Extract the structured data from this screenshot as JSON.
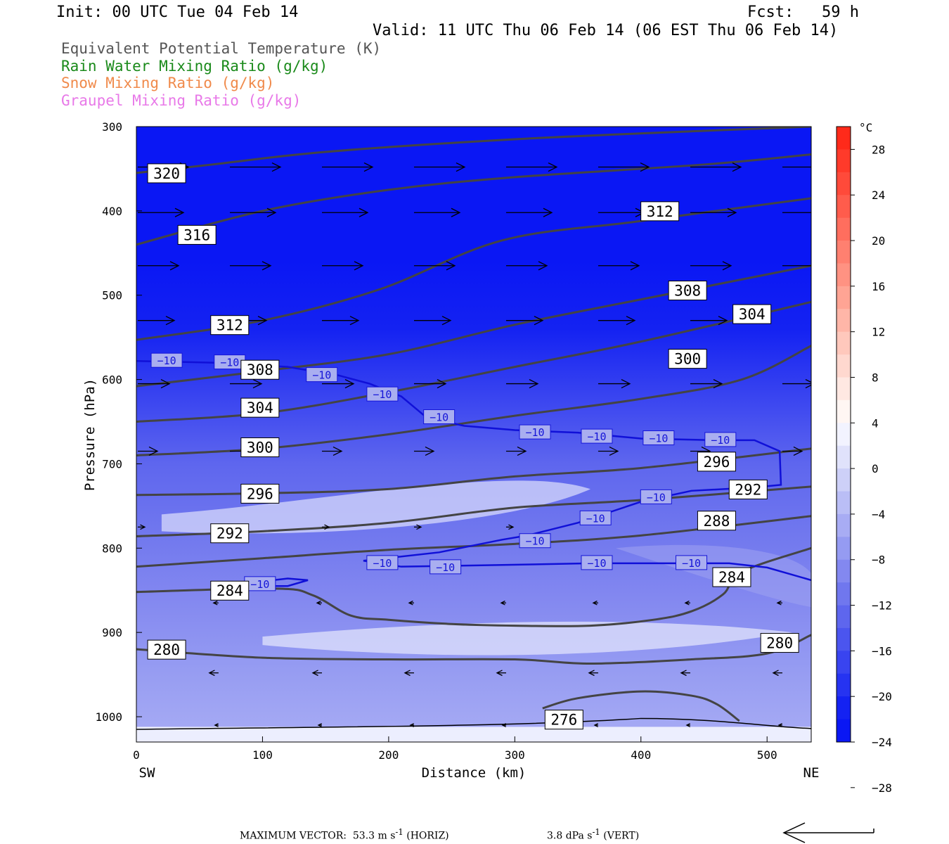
{
  "header": {
    "init": "Init: 00 UTC Tue 04 Feb 14",
    "fcst": "Fcst:   59 h",
    "valid": "Valid: 11 UTC Thu 06 Feb 14 (06 EST Thu 06 Feb 14)"
  },
  "legend": [
    {
      "label": "Equivalent Potential Temperature (K)",
      "color": "#555555"
    },
    {
      "label": "Rain Water Mixing Ratio (g/kg)",
      "color": "#1a8a1a"
    },
    {
      "label": "Snow Mixing Ratio (g/kg)",
      "color": "#f08a4b"
    },
    {
      "label": "Graupel Mixing Ratio (g/kg)",
      "color": "#e879e8"
    }
  ],
  "chart_data": {
    "type": "heatmap",
    "xlabel": "Distance (km)",
    "ylabel": "Pressure (hPa)",
    "xlim": [
      0,
      535
    ],
    "ylim": [
      1030,
      300
    ],
    "x_ticks": [
      0,
      100,
      200,
      300,
      400,
      500
    ],
    "y_ticks": [
      300,
      400,
      500,
      600,
      700,
      800,
      900,
      1000
    ],
    "x_end_labels": {
      "left": "SW",
      "right": "NE"
    },
    "colorbar": {
      "unit": "°C",
      "labels": [
        28,
        24,
        20,
        16,
        12,
        8,
        4,
        0,
        -4,
        -8,
        -12,
        -16,
        -20,
        -24,
        -28
      ],
      "bands": [
        "#ff2a1a",
        "#ff3a2a",
        "#ff4a3a",
        "#ff5c4c",
        "#ff6e5e",
        "#ff8070",
        "#ff9282",
        "#ffa494",
        "#ffb6a8",
        "#ffc8bc",
        "#ffd8cf",
        "#ffe8e2",
        "#fff6f3",
        "#f2f3ff",
        "#e0e2fb",
        "#cdd0f8",
        "#babef6",
        "#a8acf4",
        "#959bf2",
        "#8388f0",
        "#7077ee",
        "#5e66ee",
        "#4b55ef",
        "#3944f0",
        "#2633f1",
        "#1422f2",
        "#0a17f4"
      ]
    },
    "temperature_field": {
      "levels_p": [
        300,
        380,
        460,
        540,
        620,
        700,
        780,
        860,
        940,
        1030
      ],
      "values_C": [
        -32,
        -29,
        -25,
        -20,
        -15,
        -11,
        -9,
        -7,
        -6,
        -4
      ]
    },
    "theta_e_contours": [
      {
        "value": 320,
        "points": [
          [
            0,
            355
          ],
          [
            60,
            345
          ],
          [
            150,
            330
          ],
          [
            300,
            315
          ],
          [
            450,
            305
          ],
          [
            535,
            300
          ]
        ]
      },
      {
        "value": 316,
        "points": [
          [
            0,
            440
          ],
          [
            100,
            400
          ],
          [
            200,
            375
          ],
          [
            300,
            360
          ],
          [
            450,
            345
          ],
          [
            535,
            333
          ]
        ]
      },
      {
        "value": 312,
        "points": [
          [
            0,
            553
          ],
          [
            100,
            530
          ],
          [
            193,
            493
          ],
          [
            290,
            435
          ],
          [
            400,
            412
          ],
          [
            535,
            385
          ]
        ]
      },
      {
        "value": 308,
        "points": [
          [
            0,
            608
          ],
          [
            100,
            590
          ],
          [
            200,
            570
          ],
          [
            300,
            535
          ],
          [
            400,
            505
          ],
          [
            535,
            465
          ]
        ]
      },
      {
        "value": 304,
        "points": [
          [
            0,
            650
          ],
          [
            100,
            640
          ],
          [
            200,
            615
          ],
          [
            300,
            585
          ],
          [
            400,
            555
          ],
          [
            535,
            508
          ]
        ]
      },
      {
        "value": 300,
        "points": [
          [
            0,
            690
          ],
          [
            100,
            682
          ],
          [
            200,
            665
          ],
          [
            300,
            643
          ],
          [
            400,
            623
          ],
          [
            480,
            600
          ],
          [
            535,
            560
          ]
        ]
      },
      {
        "value": 296,
        "points": [
          [
            0,
            737
          ],
          [
            100,
            735
          ],
          [
            200,
            730
          ],
          [
            300,
            715
          ],
          [
            400,
            705
          ],
          [
            535,
            682
          ]
        ]
      },
      {
        "value": 292,
        "points": [
          [
            0,
            786
          ],
          [
            100,
            780
          ],
          [
            200,
            770
          ],
          [
            300,
            752
          ],
          [
            400,
            743
          ],
          [
            535,
            727
          ]
        ]
      },
      {
        "value": 288,
        "points": [
          [
            0,
            822
          ],
          [
            100,
            812
          ],
          [
            200,
            802
          ],
          [
            300,
            795
          ],
          [
            400,
            785
          ],
          [
            535,
            762
          ]
        ]
      },
      {
        "value": 284,
        "points": [
          [
            0,
            852
          ],
          [
            110,
            848
          ],
          [
            140,
            856
          ],
          [
            170,
            880
          ],
          [
            200,
            885
          ],
          [
            250,
            890
          ],
          [
            300,
            892
          ],
          [
            360,
            892
          ],
          [
            410,
            885
          ],
          [
            440,
            875
          ],
          [
            465,
            855
          ],
          [
            480,
            828
          ],
          [
            535,
            800
          ]
        ]
      },
      {
        "value": 280,
        "points": [
          [
            0,
            920
          ],
          [
            100,
            930
          ],
          [
            200,
            932
          ],
          [
            300,
            932
          ],
          [
            360,
            937
          ],
          [
            440,
            932
          ],
          [
            500,
            925
          ],
          [
            535,
            903
          ]
        ]
      },
      {
        "value": 276,
        "points": [
          [
            322,
            990
          ],
          [
            350,
            978
          ],
          [
            400,
            970
          ],
          [
            440,
            975
          ],
          [
            460,
            985
          ],
          [
            478,
            1005
          ]
        ]
      }
    ],
    "minus10_isotherm": [
      {
        "value": -10,
        "points": [
          [
            0,
            578
          ],
          [
            60,
            580
          ],
          [
            120,
            585
          ],
          [
            160,
            595
          ],
          [
            185,
            605
          ],
          [
            210,
            620
          ],
          [
            230,
            645
          ],
          [
            260,
            655
          ],
          [
            300,
            660
          ],
          [
            350,
            663
          ],
          [
            400,
            670
          ],
          [
            460,
            672
          ],
          [
            490,
            672
          ],
          [
            510,
            685
          ],
          [
            511,
            725
          ],
          [
            490,
            728
          ],
          [
            440,
            732
          ],
          [
            400,
            745
          ],
          [
            380,
            755
          ],
          [
            350,
            770
          ],
          [
            310,
            785
          ],
          [
            290,
            790
          ],
          [
            240,
            805
          ],
          [
            180,
            815
          ],
          [
            210,
            822
          ],
          [
            290,
            820
          ],
          [
            360,
            818
          ],
          [
            420,
            818
          ],
          [
            470,
            818
          ],
          [
            500,
            823
          ],
          [
            535,
            838
          ]
        ]
      },
      {
        "value": -10,
        "points": [
          [
            85,
            842
          ],
          [
            120,
            836
          ],
          [
            136,
            838
          ],
          [
            120,
            845
          ],
          [
            85,
            845
          ]
        ]
      }
    ],
    "contour_labels_theta_e": [
      {
        "value": 320,
        "at": [
          24,
          355
        ]
      },
      {
        "value": 316,
        "at": [
          48,
          428
        ]
      },
      {
        "value": 312,
        "at": [
          74,
          535
        ]
      },
      {
        "value": 312,
        "at": [
          415,
          400
        ]
      },
      {
        "value": 308,
        "at": [
          98,
          588
        ]
      },
      {
        "value": 308,
        "at": [
          437,
          494
        ]
      },
      {
        "value": 304,
        "at": [
          98,
          633
        ]
      },
      {
        "value": 304,
        "at": [
          488,
          522
        ]
      },
      {
        "value": 300,
        "at": [
          98,
          680
        ]
      },
      {
        "value": 300,
        "at": [
          437,
          575
        ]
      },
      {
        "value": 296,
        "at": [
          98,
          735
        ]
      },
      {
        "value": 296,
        "at": [
          460,
          697
        ]
      },
      {
        "value": 292,
        "at": [
          74,
          782
        ]
      },
      {
        "value": 292,
        "at": [
          485,
          730
        ]
      },
      {
        "value": 288,
        "at": [
          460,
          767
        ]
      },
      {
        "value": 284,
        "at": [
          74,
          850
        ]
      },
      {
        "value": 284,
        "at": [
          472,
          834
        ]
      },
      {
        "value": 280,
        "at": [
          24,
          920
        ]
      },
      {
        "value": 280,
        "at": [
          510,
          912
        ]
      },
      {
        "value": 276,
        "at": [
          339,
          1003
        ]
      }
    ],
    "contour_labels_isotherm": [
      {
        "value": -10,
        "at": [
          24,
          578
        ]
      },
      {
        "value": -10,
        "at": [
          74,
          580
        ]
      },
      {
        "value": -10,
        "at": [
          147,
          595
        ]
      },
      {
        "value": -10,
        "at": [
          195,
          618
        ]
      },
      {
        "value": -10,
        "at": [
          240,
          645
        ]
      },
      {
        "value": -10,
        "at": [
          316,
          663
        ]
      },
      {
        "value": -10,
        "at": [
          365,
          668
        ]
      },
      {
        "value": -10,
        "at": [
          414,
          670
        ]
      },
      {
        "value": -10,
        "at": [
          463,
          672
        ]
      },
      {
        "value": -10,
        "at": [
          412,
          740
        ]
      },
      {
        "value": -10,
        "at": [
          364,
          765
        ]
      },
      {
        "value": -10,
        "at": [
          316,
          792
        ]
      },
      {
        "value": -10,
        "at": [
          195,
          818
        ]
      },
      {
        "value": -10,
        "at": [
          245,
          823
        ]
      },
      {
        "value": -10,
        "at": [
          365,
          818
        ]
      },
      {
        "value": -10,
        "at": [
          440,
          818
        ]
      },
      {
        "value": -10,
        "at": [
          98,
          843
        ]
      }
    ],
    "wind_vectors": {
      "rows": [
        {
          "p": 348,
          "x0": [
            0,
            73,
            146,
            219,
            292,
            365,
            438,
            511
          ],
          "dx": 72
        },
        {
          "p": 402,
          "x0": [
            0,
            73,
            146,
            219,
            292,
            365,
            438,
            511
          ],
          "dx": 65
        },
        {
          "p": 465,
          "x0": [
            0,
            73,
            146,
            219,
            292,
            365,
            438,
            511
          ],
          "dx": 58
        },
        {
          "p": 530,
          "x0": [
            0,
            73,
            146,
            219,
            292,
            365,
            438
          ],
          "dx": 52
        },
        {
          "p": 605,
          "x0": [
            0,
            73,
            146,
            219,
            292,
            365,
            438,
            511
          ],
          "dx": 45
        },
        {
          "p": 685,
          "x0": [
            0,
            73,
            146,
            219,
            292,
            365,
            438,
            511
          ],
          "dx": 28
        },
        {
          "p": 775,
          "x0": [
            0,
            146,
            219,
            292
          ],
          "dx": 10
        },
        {
          "p": 865,
          "x0": [
            64,
            146,
            219,
            292,
            365,
            438,
            511
          ],
          "dx": -7
        },
        {
          "p": 948,
          "x0": [
            64,
            146,
            219,
            292,
            365,
            438,
            511
          ],
          "dx": -13
        },
        {
          "p": 1010,
          "x0": [
            64,
            146,
            219,
            292,
            365,
            438,
            511
          ],
          "dx": -5
        }
      ]
    }
  },
  "footer": {
    "max_vector": "MAXIMUM VECTOR:  53.3 m s",
    "horiz_exp": "-1",
    "horiz_unit": " (HORIZ)",
    "vert": "3.8 dPa s",
    "vert_exp": "-1",
    "vert_unit": " (VERT)"
  }
}
